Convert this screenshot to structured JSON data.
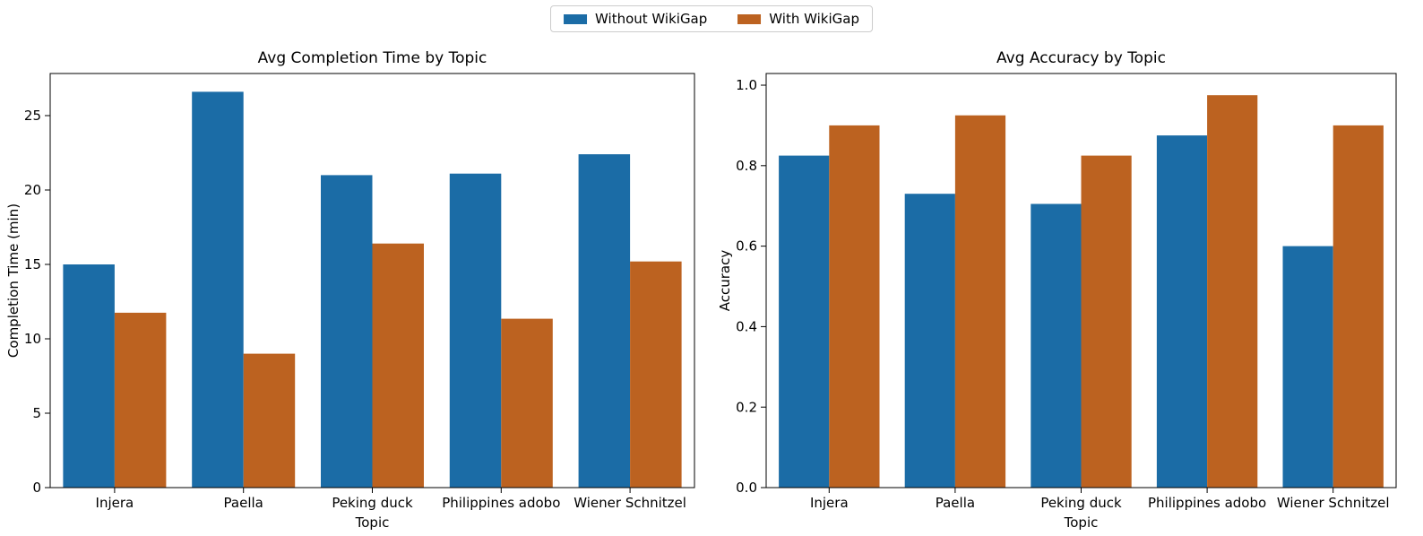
{
  "figure": {
    "background": "#ffffff"
  },
  "legend": {
    "items": [
      {
        "label": "Without WikiGap",
        "color": "#1b6ca6"
      },
      {
        "label": "With WikiGap",
        "color": "#bc6220"
      }
    ]
  },
  "chart_data": [
    {
      "type": "bar",
      "title": "Avg Completion Time by Topic",
      "xlabel": "Topic",
      "ylabel": "Completion Time (min)",
      "categories": [
        "Injera",
        "Paella",
        "Peking duck",
        "Philippines adobo",
        "Wiener Schnitzel"
      ],
      "series": [
        {
          "name": "Without WikiGap",
          "color": "#1b6ca6",
          "values": [
            15.0,
            26.6,
            21.0,
            21.1,
            22.4
          ]
        },
        {
          "name": "With WikiGap",
          "color": "#bc6220",
          "values": [
            11.75,
            9.0,
            16.4,
            11.35,
            15.2
          ]
        }
      ],
      "ylim": [
        0,
        27.83
      ],
      "yticks": [
        0,
        5,
        10,
        15,
        20,
        25
      ],
      "ytick_labels": [
        "0",
        "5",
        "10",
        "15",
        "20",
        "25"
      ],
      "grid": false,
      "legend_position": "figure-top-center"
    },
    {
      "type": "bar",
      "title": "Avg Accuracy by Topic",
      "xlabel": "Topic",
      "ylabel": "Accuracy",
      "categories": [
        "Injera",
        "Paella",
        "Peking duck",
        "Philippines adobo",
        "Wiener Schnitzel"
      ],
      "series": [
        {
          "name": "Without WikiGap",
          "color": "#1b6ca6",
          "values": [
            0.825,
            0.73,
            0.705,
            0.875,
            0.6
          ]
        },
        {
          "name": "With WikiGap",
          "color": "#bc6220",
          "values": [
            0.9,
            0.925,
            0.825,
            0.975,
            0.9
          ]
        }
      ],
      "ylim": [
        0,
        1.029
      ],
      "yticks": [
        0.0,
        0.2,
        0.4,
        0.6,
        0.8,
        1.0
      ],
      "ytick_labels": [
        "0.0",
        "0.2",
        "0.4",
        "0.6",
        "0.8",
        "1.0"
      ],
      "grid": false,
      "legend_position": "figure-top-center"
    }
  ]
}
